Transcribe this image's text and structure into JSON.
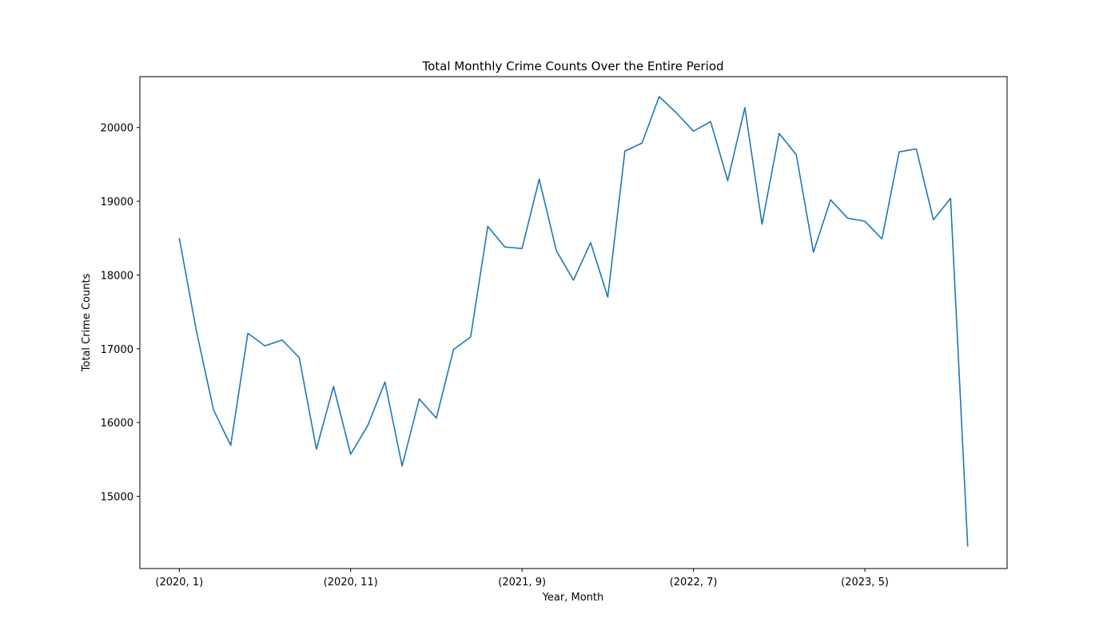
{
  "chart_data": {
    "type": "line",
    "title": "Total Monthly Crime Counts Over the Entire Period",
    "xlabel": "Year, Month",
    "ylabel": "Total Crime Counts",
    "grid": false,
    "x_tick_labels": [
      "(2020, 1)",
      "(2020, 11)",
      "(2021, 9)",
      "(2022, 7)",
      "(2023, 5)"
    ],
    "x_tick_indices": [
      0,
      10,
      20,
      30,
      40
    ],
    "y_ticks": [
      15000,
      16000,
      17000,
      18000,
      19000,
      20000
    ],
    "ylim": [
      14020,
      20690
    ],
    "series": [
      {
        "color": "#1f77b4",
        "values": [
          18500,
          17240,
          16170,
          15690,
          17210,
          17040,
          17120,
          16880,
          15640,
          16490,
          15570,
          15960,
          16550,
          15410,
          16320,
          16060,
          16990,
          17160,
          18660,
          18380,
          18360,
          19300,
          18330,
          17930,
          18440,
          17700,
          19680,
          19790,
          20420,
          20200,
          19950,
          20080,
          19280,
          20270,
          18690,
          19920,
          19630,
          18310,
          19020,
          18770,
          18730,
          18490,
          19670,
          19710,
          18750,
          19040,
          14320
        ]
      }
    ]
  }
}
